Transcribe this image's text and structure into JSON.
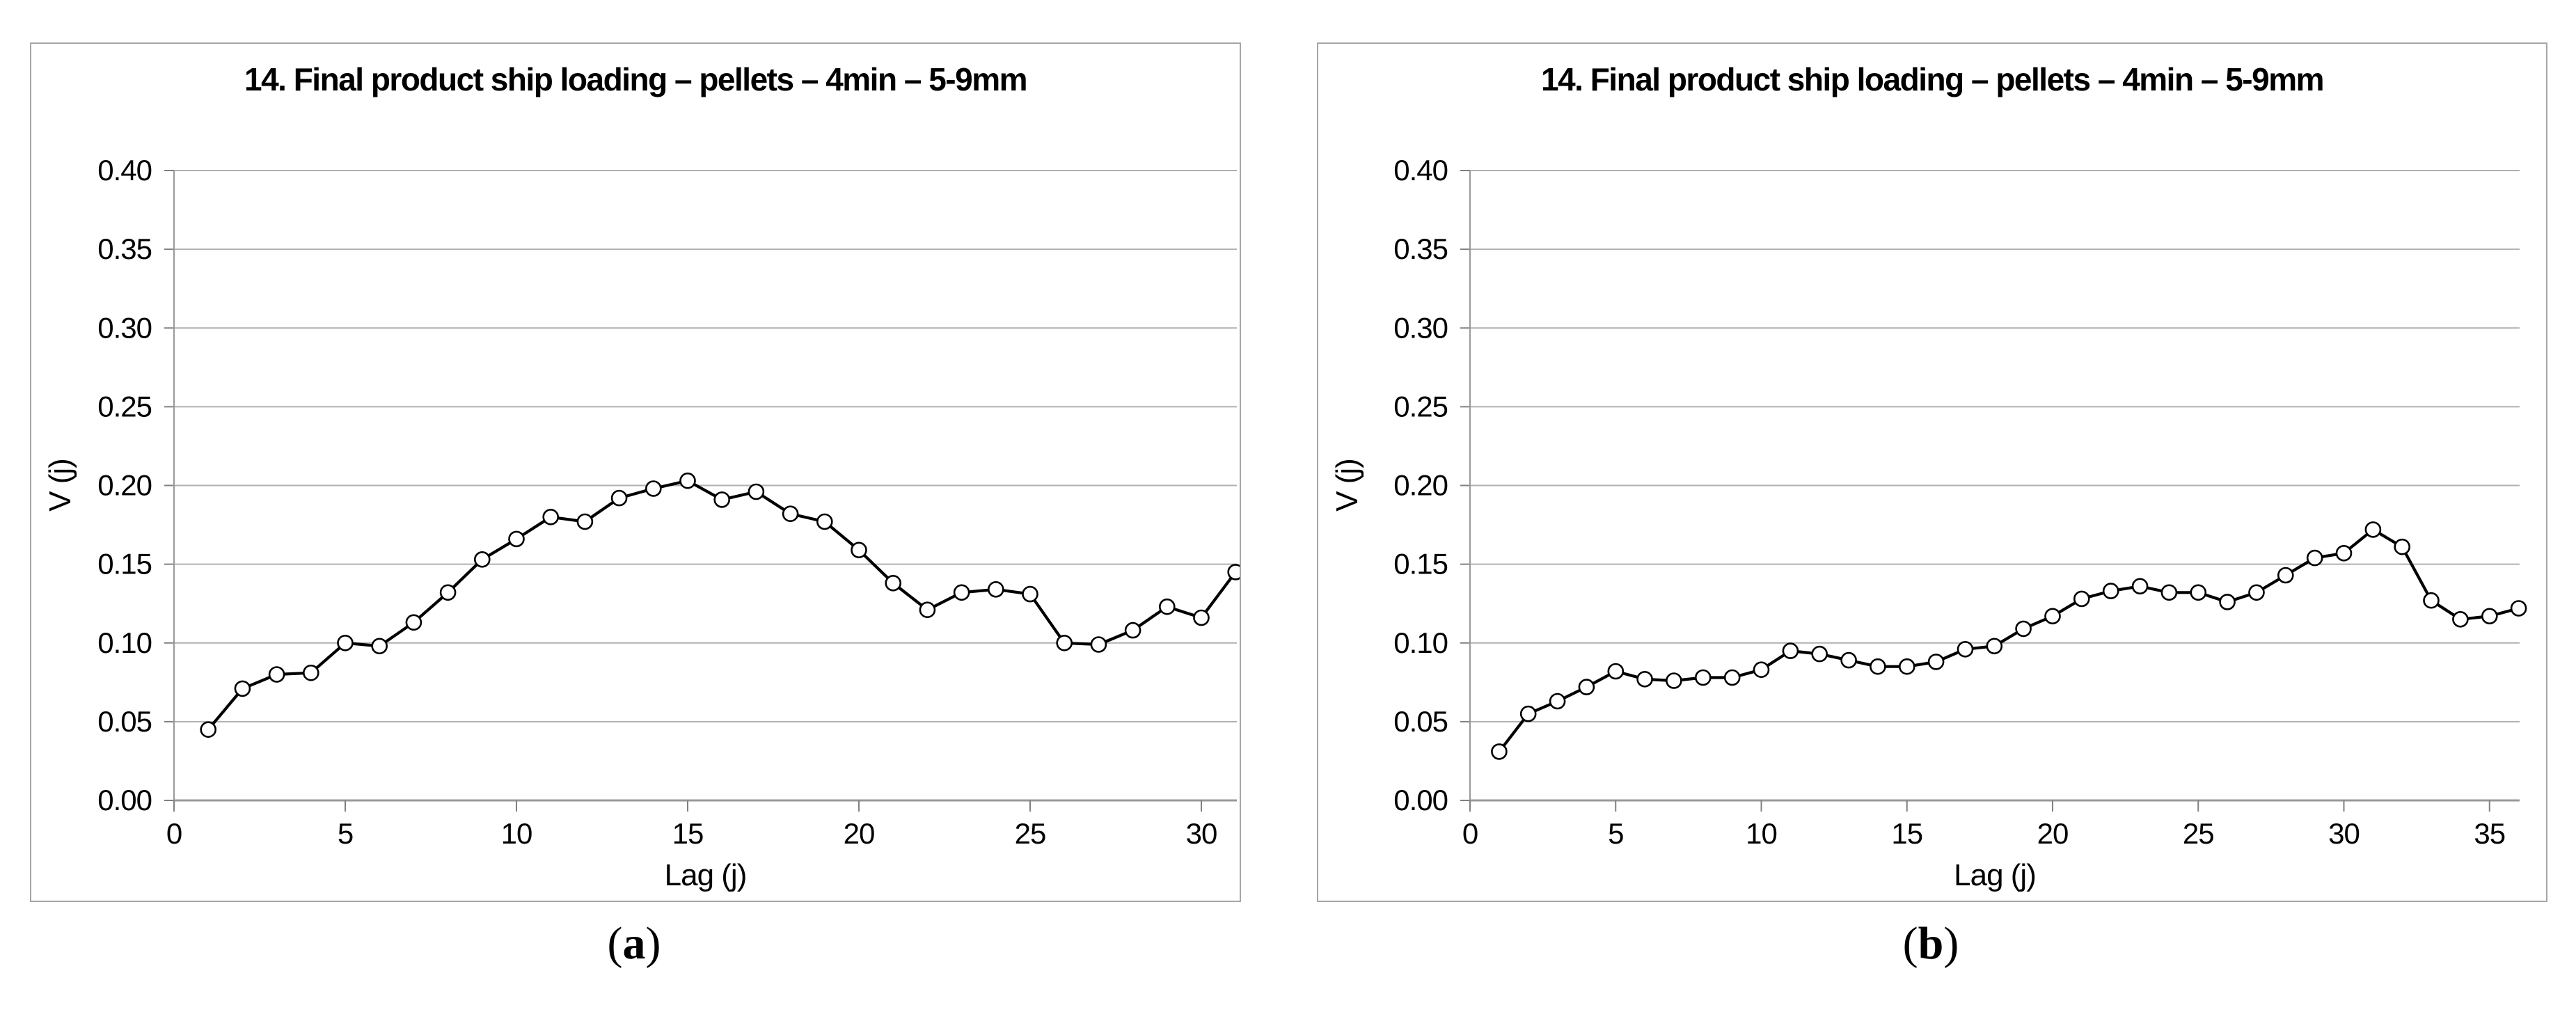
{
  "figure": {
    "captions": {
      "a": {
        "open": "(",
        "letter": "a",
        "close": ")"
      },
      "b": {
        "open": "(",
        "letter": "b",
        "close": ")"
      }
    }
  },
  "chart_data": [
    {
      "type": "line",
      "panel": "a",
      "title": "14. Final product ship loading – pellets – 4min – 5-9mm",
      "xlabel": "Lag (j)",
      "ylabel": "V (j)",
      "grid": true,
      "legend_position": "none",
      "marker": "open-circle",
      "line_color": "#000000",
      "grid_color": "#b0b0b0",
      "xlim": [
        0,
        31.6
      ],
      "ylim": [
        0,
        0.4
      ],
      "x_ticks": [
        0,
        5,
        10,
        15,
        20,
        25,
        30
      ],
      "y_ticks": [
        "0.00",
        "0.05",
        "0.10",
        "0.15",
        "0.20",
        "0.25",
        "0.30",
        "0.35",
        "0.40"
      ],
      "x": [
        1,
        2,
        3,
        4,
        5,
        6,
        7,
        8,
        9,
        10,
        11,
        12,
        13,
        14,
        15,
        16,
        17,
        18,
        19,
        20,
        21,
        22,
        23,
        24,
        25,
        26,
        27,
        28,
        29,
        30,
        31
      ],
      "y": [
        0.045,
        0.071,
        0.08,
        0.081,
        0.1,
        0.098,
        0.113,
        0.132,
        0.153,
        0.166,
        0.18,
        0.177,
        0.192,
        0.198,
        0.203,
        0.191,
        0.196,
        0.182,
        0.177,
        0.159,
        0.138,
        0.121,
        0.132,
        0.134,
        0.131,
        0.1,
        0.099,
        0.108,
        0.123,
        0.116,
        0.145
      ]
    },
    {
      "type": "line",
      "panel": "b",
      "title": "14. Final product ship loading – pellets – 4min – 5-9mm",
      "xlabel": "Lag (j)",
      "ylabel": "V (j)",
      "grid": true,
      "legend_position": "none",
      "marker": "open-circle",
      "line_color": "#000000",
      "grid_color": "#b0b0b0",
      "xlim": [
        0,
        36.3
      ],
      "ylim": [
        0,
        0.4
      ],
      "x_ticks": [
        0,
        5,
        10,
        15,
        20,
        25,
        30,
        35
      ],
      "y_ticks": [
        "0.00",
        "0.05",
        "0.10",
        "0.15",
        "0.20",
        "0.25",
        "0.30",
        "0.35",
        "0.40"
      ],
      "x": [
        1,
        2,
        3,
        4,
        5,
        6,
        7,
        8,
        9,
        10,
        11,
        12,
        13,
        14,
        15,
        16,
        17,
        18,
        19,
        20,
        21,
        22,
        23,
        24,
        25,
        26,
        27,
        28,
        29,
        30,
        31,
        32,
        33,
        34,
        35,
        36
      ],
      "y": [
        0.031,
        0.055,
        0.063,
        0.072,
        0.082,
        0.077,
        0.076,
        0.078,
        0.078,
        0.083,
        0.095,
        0.093,
        0.089,
        0.085,
        0.085,
        0.088,
        0.096,
        0.098,
        0.109,
        0.117,
        0.128,
        0.133,
        0.136,
        0.132,
        0.132,
        0.126,
        0.132,
        0.143,
        0.154,
        0.157,
        0.172,
        0.161,
        0.127,
        0.115,
        0.117,
        0.122
      ]
    }
  ]
}
